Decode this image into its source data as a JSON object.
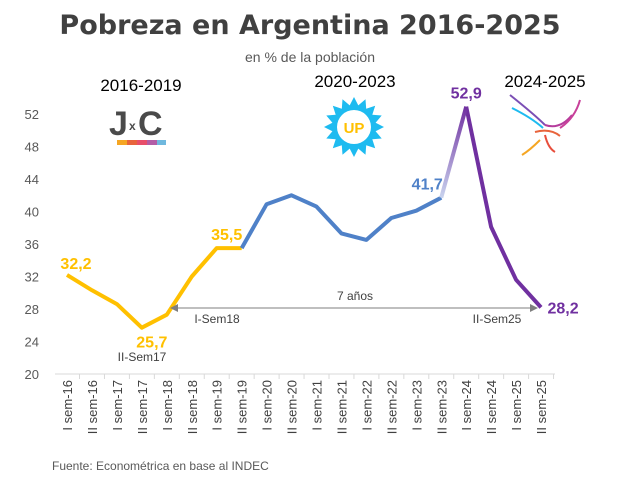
{
  "chart_data": {
    "type": "line",
    "title": "Pobreza en Argentina 2016-2025",
    "subtitle": "en % de la población",
    "categories": [
      "I sem-16",
      "II sem-16",
      "I sem-17",
      "II sem-17",
      "I sem-18",
      "II sem-18",
      "I sem-19",
      "II sem-19",
      "I sem-20",
      "II sem-20",
      "I sem-21",
      "II sem-21",
      "I sem-22",
      "II sem-22",
      "I sem-23",
      "II sem-23",
      "I sem-24",
      "II sem-24",
      "I sem-25",
      "II sem-25"
    ],
    "values": [
      32.2,
      30.3,
      28.6,
      25.7,
      27.3,
      32.0,
      35.5,
      35.5,
      40.9,
      42.0,
      40.6,
      37.3,
      36.5,
      39.2,
      40.1,
      41.7,
      52.9,
      38.1,
      31.6,
      28.2
    ],
    "segments": [
      {
        "period": "2016-2019",
        "from": 0,
        "to": 7,
        "color": "#FFC000",
        "logo": "JxC"
      },
      {
        "period": "2020-2023",
        "from": 7,
        "to": 15,
        "color": "#4F81C8",
        "logo": "UP"
      },
      {
        "period": "2024-2025",
        "from": 16,
        "to": 19,
        "color": "#7030A0",
        "logo": "eagle"
      }
    ],
    "data_labels": [
      {
        "index": 0,
        "text": "32,2",
        "color": "#FFC000"
      },
      {
        "index": 3,
        "text": "25,7",
        "color": "#FFC000"
      },
      {
        "index": 6,
        "text": "35,5",
        "color": "#FFC000"
      },
      {
        "index": 15,
        "text": "41,7",
        "color": "#4F81C8"
      },
      {
        "index": 16,
        "text": "52,9",
        "color": "#7030A0"
      },
      {
        "index": 19,
        "text": "28,2",
        "color": "#7030A0"
      }
    ],
    "yticks": [
      20,
      24,
      28,
      32,
      36,
      40,
      44,
      48,
      52
    ],
    "ylim": [
      20,
      52
    ],
    "xlabel": "",
    "ylabel": "",
    "grid": false,
    "annotations": {
      "arrow_label": "7 años",
      "arrow_start": "I-Sem18",
      "arrow_end": "II-Sem25",
      "low_label": "II-Sem17"
    },
    "source": "Fuente: Econométrica en base al INDEC"
  }
}
